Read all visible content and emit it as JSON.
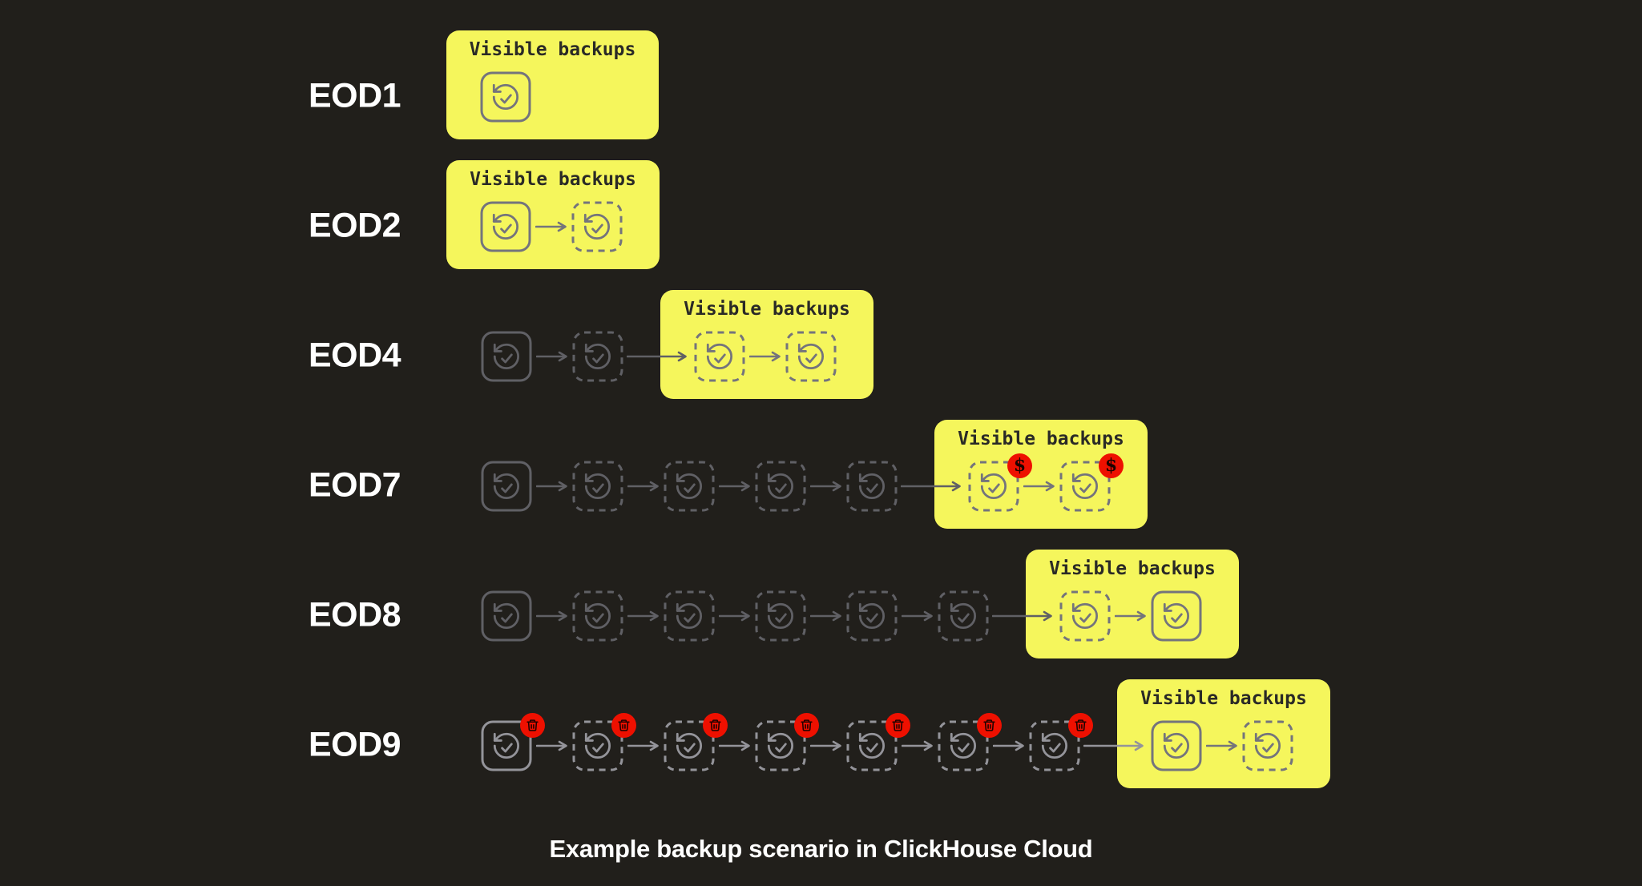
{
  "caption": "Example backup scenario in ClickHouse Cloud",
  "visible_label": "Visible backups",
  "badges": {
    "dollar": "$",
    "trash": "trash-icon"
  },
  "colors": {
    "background": "#211f1b",
    "box_yellow": "#f5f65c",
    "badge_red": "#ee1000",
    "box_stroke": "#74747c",
    "muted_stroke": "#606065",
    "bright_stroke": "#94949a",
    "title_text": "#2a2a26",
    "label_text": "#ffffff",
    "badge_glyph": "#1e0200"
  },
  "rows": [
    {
      "label": "EOD1",
      "outside": [],
      "in_box": [
        {
          "style": "solid",
          "badge": null
        }
      ]
    },
    {
      "label": "EOD2",
      "outside": [],
      "in_box": [
        {
          "style": "solid",
          "badge": null
        },
        {
          "style": "dashed",
          "badge": null
        }
      ]
    },
    {
      "label": "EOD4",
      "outside": [
        {
          "style": "solid",
          "badge": null
        },
        {
          "style": "dashed",
          "badge": null
        }
      ],
      "in_box": [
        {
          "style": "dashed",
          "badge": null
        },
        {
          "style": "dashed",
          "badge": null
        }
      ]
    },
    {
      "label": "EOD7",
      "outside": [
        {
          "style": "solid",
          "badge": null
        },
        {
          "style": "dashed",
          "badge": null
        },
        {
          "style": "dashed",
          "badge": null
        },
        {
          "style": "dashed",
          "badge": null
        },
        {
          "style": "dashed",
          "badge": null
        }
      ],
      "in_box": [
        {
          "style": "dashed",
          "badge": "dollar"
        },
        {
          "style": "dashed",
          "badge": "dollar"
        }
      ]
    },
    {
      "label": "EOD8",
      "outside": [
        {
          "style": "solid",
          "badge": null
        },
        {
          "style": "dashed",
          "badge": null
        },
        {
          "style": "dashed",
          "badge": null
        },
        {
          "style": "dashed",
          "badge": null
        },
        {
          "style": "dashed",
          "badge": null
        },
        {
          "style": "dashed",
          "badge": null
        }
      ],
      "in_box": [
        {
          "style": "dashed",
          "badge": null
        },
        {
          "style": "solid",
          "badge": null
        }
      ]
    },
    {
      "label": "EOD9",
      "bright": true,
      "outside": [
        {
          "style": "solid",
          "badge": "trash"
        },
        {
          "style": "dashed",
          "badge": "trash"
        },
        {
          "style": "dashed",
          "badge": "trash"
        },
        {
          "style": "dashed",
          "badge": "trash"
        },
        {
          "style": "dashed",
          "badge": "trash"
        },
        {
          "style": "dashed",
          "badge": "trash"
        },
        {
          "style": "dashed",
          "badge": "trash"
        }
      ],
      "in_box": [
        {
          "style": "solid",
          "badge": null
        },
        {
          "style": "dashed",
          "badge": null
        }
      ]
    }
  ]
}
